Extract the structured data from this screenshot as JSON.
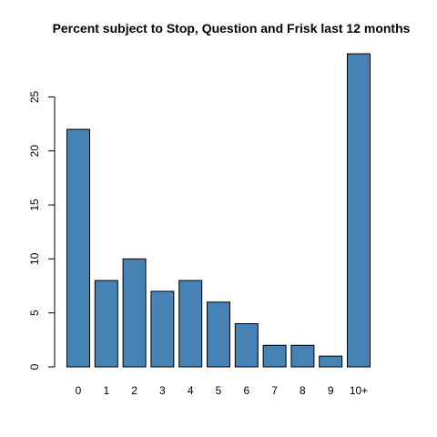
{
  "chart_data": {
    "type": "bar",
    "title": "Percent subject to Stop, Question and Frisk last 12 months",
    "categories": [
      "0",
      "1",
      "2",
      "3",
      "4",
      "5",
      "6",
      "7",
      "8",
      "9",
      "10+",
      ""
    ],
    "values": [
      22,
      8,
      10,
      7,
      8,
      6,
      4,
      2,
      2,
      1,
      29,
      0
    ],
    "yticks": [
      0,
      5,
      10,
      15,
      20,
      25
    ],
    "ylim": [
      0,
      29
    ],
    "xlabel": "",
    "ylabel": "",
    "grid": false,
    "colors": {
      "bar_fill": "#4682b4",
      "bar_stroke": "#000000",
      "axis": "#000000"
    }
  }
}
